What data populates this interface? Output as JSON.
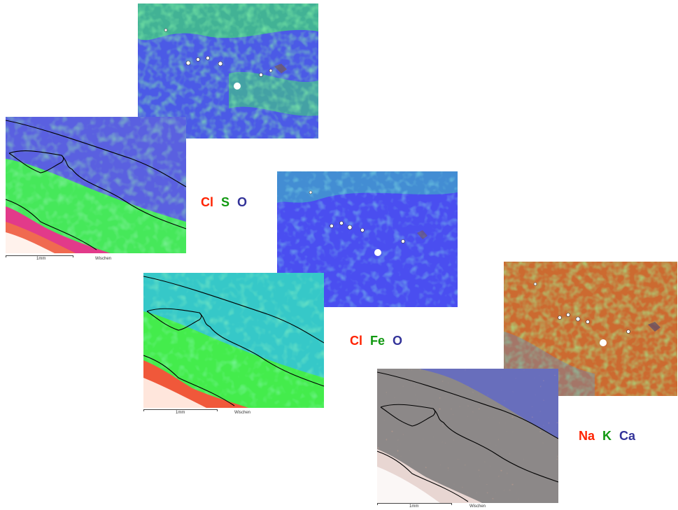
{
  "legends": [
    {
      "id": "set1",
      "elements": [
        {
          "symbol": "Cl",
          "color": "#ff2200"
        },
        {
          "symbol": "S",
          "color": "#119911"
        },
        {
          "symbol": "O",
          "color": "#333399"
        }
      ]
    },
    {
      "id": "set2",
      "elements": [
        {
          "symbol": "Cl",
          "color": "#ff2200"
        },
        {
          "symbol": "Fe",
          "color": "#119911"
        },
        {
          "symbol": "O",
          "color": "#333399"
        }
      ]
    },
    {
      "id": "set3",
      "elements": [
        {
          "symbol": "Na",
          "color": "#ff2200"
        },
        {
          "symbol": "K",
          "color": "#119911"
        },
        {
          "symbol": "Ca",
          "color": "#333399"
        }
      ]
    }
  ],
  "scalebars": [
    {
      "label": "1mm",
      "caption": "Wischen"
    },
    {
      "label": "1mm",
      "caption": "Wischen"
    },
    {
      "label": "1mm",
      "caption": "Wischen"
    }
  ],
  "colors": {
    "blue_map": "#4a55e8",
    "green_map": "#44e860",
    "cyan_map": "#3ad6b0",
    "orange_map": "#d2702a",
    "grey_map": "#8a8a8a",
    "boundary_line": "#000000"
  }
}
